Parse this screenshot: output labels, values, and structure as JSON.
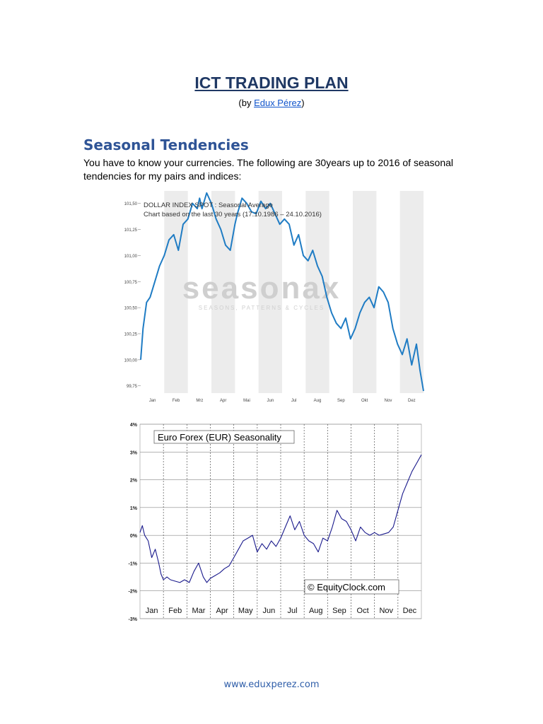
{
  "doc": {
    "title": "ICT TRADING PLAN",
    "byline_prefix": "(by ",
    "byline_author": "Edux Pérez",
    "byline_suffix": ")",
    "section_heading": "Seasonal Tendencies",
    "intro_text": "You have to know your currencies. The following are 30years up to 2016 of seasonal tendencies for my pairs and indices:",
    "footer": "www.eduxperez.com"
  },
  "chart_data": [
    {
      "type": "line",
      "title": "DOLLAR INDEX SPOT : Seasonal Average",
      "subtitle": "Chart based on the last 30 years (17.10.1986 – 24.10.2016)",
      "watermark": "seasonax",
      "watermark_tagline": "SEASONS, PATTERNS & CYCLES",
      "categories": [
        "Jan",
        "Feb",
        "Mrz",
        "Apr",
        "Mai",
        "Jun",
        "Jul",
        "Aug",
        "Sep",
        "Okt",
        "Nov",
        "Dez"
      ],
      "y_ticks": [
        "101,50",
        "101,25",
        "101,00",
        "100,75",
        "100,50",
        "100,25",
        "100,00",
        "99,75"
      ],
      "ylim": [
        99.68,
        101.62
      ],
      "grid": true,
      "line_color": "#1f7cc4",
      "series": [
        {
          "x": [
            0.0,
            0.1,
            0.25,
            0.4,
            0.6,
            0.8,
            1.0,
            1.2,
            1.4,
            1.6,
            1.8,
            2.0,
            2.2,
            2.4,
            2.5,
            2.6,
            2.8,
            3.0,
            3.2,
            3.4,
            3.6,
            3.8,
            4.0,
            4.1,
            4.3,
            4.5,
            4.7,
            4.9,
            5.1,
            5.3,
            5.5,
            5.7,
            5.9,
            6.1,
            6.3,
            6.5,
            6.7,
            6.9,
            7.1,
            7.3,
            7.5,
            7.7,
            7.9,
            8.1,
            8.3,
            8.5,
            8.7,
            8.9,
            9.1,
            9.3,
            9.5,
            9.7,
            9.9,
            10.1,
            10.3,
            10.5,
            10.7,
            10.9,
            11.1,
            11.3,
            11.5,
            11.7,
            11.85,
            12.0
          ],
          "y": [
            100.0,
            100.3,
            100.55,
            100.6,
            100.75,
            100.9,
            101.0,
            101.15,
            101.2,
            101.05,
            101.3,
            101.35,
            101.5,
            101.45,
            101.55,
            101.45,
            101.6,
            101.5,
            101.35,
            101.25,
            101.1,
            101.05,
            101.3,
            101.4,
            101.55,
            101.5,
            101.42,
            101.4,
            101.52,
            101.45,
            101.5,
            101.4,
            101.3,
            101.35,
            101.3,
            101.1,
            101.2,
            101.0,
            100.95,
            101.05,
            100.9,
            100.8,
            100.6,
            100.45,
            100.35,
            100.3,
            100.4,
            100.2,
            100.3,
            100.45,
            100.55,
            100.6,
            100.5,
            100.7,
            100.65,
            100.55,
            100.3,
            100.15,
            100.05,
            100.2,
            99.95,
            100.15,
            99.9,
            99.7
          ]
        }
      ]
    },
    {
      "type": "line",
      "title": "Euro Forex (EUR) Seasonality",
      "watermark": "© EquityClock.com",
      "categories": [
        "Jan",
        "Feb",
        "Mar",
        "Apr",
        "May",
        "Jun",
        "Jul",
        "Aug",
        "Sep",
        "Oct",
        "Nov",
        "Dec"
      ],
      "y_ticks": [
        "4%",
        "3%",
        "2%",
        "1%",
        "0%",
        "-1%",
        "-2%",
        "-3%"
      ],
      "ylim": [
        -3,
        4
      ],
      "grid": true,
      "line_color": "#1a1a8c",
      "series": [
        {
          "x": [
            0.0,
            0.1,
            0.2,
            0.35,
            0.5,
            0.65,
            0.8,
            0.9,
            1.0,
            1.15,
            1.3,
            1.5,
            1.7,
            1.9,
            2.1,
            2.3,
            2.5,
            2.7,
            2.85,
            3.0,
            3.2,
            3.4,
            3.6,
            3.8,
            4.0,
            4.2,
            4.4,
            4.6,
            4.8,
            5.0,
            5.2,
            5.4,
            5.6,
            5.8,
            6.0,
            6.2,
            6.4,
            6.6,
            6.8,
            7.0,
            7.2,
            7.4,
            7.6,
            7.8,
            8.0,
            8.2,
            8.4,
            8.6,
            8.8,
            9.0,
            9.2,
            9.4,
            9.6,
            9.8,
            10.0,
            10.2,
            10.4,
            10.6,
            10.8,
            11.0,
            11.2,
            11.4,
            11.6,
            11.8,
            12.0
          ],
          "y": [
            0.1,
            0.35,
            0.0,
            -0.2,
            -0.8,
            -0.5,
            -1.0,
            -1.4,
            -1.6,
            -1.5,
            -1.6,
            -1.65,
            -1.7,
            -1.6,
            -1.7,
            -1.3,
            -1.0,
            -1.5,
            -1.7,
            -1.55,
            -1.45,
            -1.35,
            -1.2,
            -1.1,
            -0.8,
            -0.5,
            -0.2,
            -0.1,
            0.0,
            -0.6,
            -0.3,
            -0.5,
            -0.2,
            -0.4,
            -0.1,
            0.3,
            0.7,
            0.2,
            0.5,
            0.0,
            -0.2,
            -0.3,
            -0.6,
            -0.1,
            -0.2,
            0.3,
            0.9,
            0.6,
            0.5,
            0.2,
            -0.2,
            0.3,
            0.1,
            0.0,
            0.1,
            0.0,
            0.05,
            0.1,
            0.3,
            0.9,
            1.5,
            1.9,
            2.3,
            2.6,
            2.9
          ]
        }
      ]
    }
  ]
}
